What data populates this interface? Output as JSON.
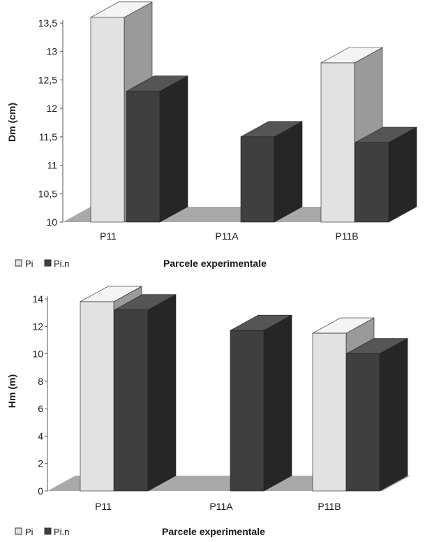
{
  "colors": {
    "pi_front": "#e2e2e2",
    "pi_side": "#9a9a9a",
    "pi_top": "#f4f4f4",
    "pin_front": "#3f3f3f",
    "pin_side": "#262626",
    "pin_top": "#555555",
    "floor": "#a9a9a9",
    "axis": "#555555"
  },
  "chart_data": [
    {
      "type": "bar",
      "ylabel": "Dm  (cm)",
      "xlabel": "Parcele experimentale",
      "categories": [
        "P11",
        "P11A",
        "P11B"
      ],
      "ylim": [
        10,
        13.5
      ],
      "yticks": [
        "13,5",
        "13",
        "12,5",
        "12",
        "11,5",
        "11",
        "10,5",
        "10"
      ],
      "ytick_values": [
        13.5,
        13,
        12.5,
        12,
        11.5,
        11,
        10.5,
        10
      ],
      "legend": [
        "Pi",
        "Pi.n"
      ],
      "legend_position": "bottom-left",
      "series": [
        {
          "name": "Pi",
          "values": [
            13.6,
            null,
            12.8
          ]
        },
        {
          "name": "Pi.n",
          "values": [
            12.3,
            11.5,
            11.4
          ]
        }
      ]
    },
    {
      "type": "bar",
      "ylabel": "Hm (m)",
      "xlabel": "Parcele experimentale",
      "categories": [
        "P11",
        "P11A",
        "P11B"
      ],
      "ylim": [
        0,
        14
      ],
      "yticks": [
        "14",
        "12",
        "10",
        "8",
        "6",
        "4",
        "2",
        "0"
      ],
      "ytick_values": [
        14,
        12,
        10,
        8,
        6,
        4,
        2,
        0
      ],
      "legend": [
        "Pi",
        "Pi.n"
      ],
      "legend_position": "bottom-left",
      "series": [
        {
          "name": "Pi",
          "values": [
            13.8,
            null,
            11.5
          ]
        },
        {
          "name": "Pi.n",
          "values": [
            13.2,
            11.7,
            10.0
          ]
        }
      ]
    }
  ]
}
